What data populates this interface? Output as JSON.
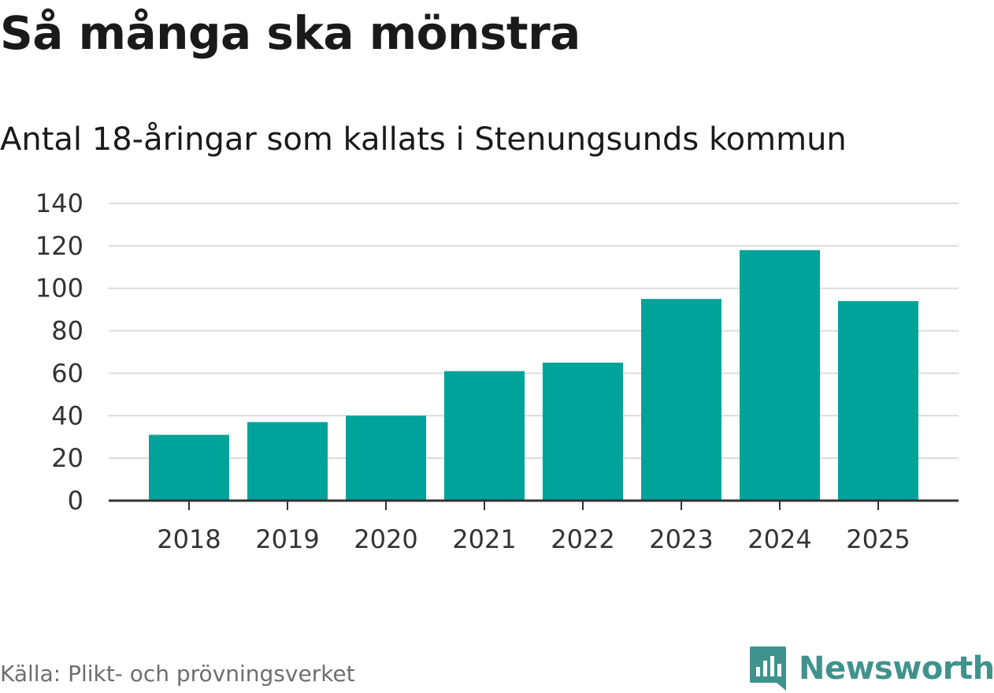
{
  "title": "Så många ska mönstra",
  "subtitle": "Antal 18-åringar som kallats i Stenungsunds kommun",
  "source": "Källa: Plikt- och prövningsverket",
  "brand": {
    "name": "Newsworthy",
    "icon": "newsworthy-logo-icon",
    "color": "#40938d"
  },
  "chart_data": {
    "type": "bar",
    "title": "Så många ska mönstra",
    "subtitle": "Antal 18-åringar som kallats i Stenungsunds kommun",
    "categories": [
      "2018",
      "2019",
      "2020",
      "2021",
      "2022",
      "2023",
      "2024",
      "2025"
    ],
    "values": [
      31,
      37,
      40,
      61,
      65,
      95,
      118,
      94
    ],
    "xlabel": "",
    "ylabel": "",
    "ylim": [
      0,
      140
    ],
    "yticks": [
      0,
      20,
      40,
      60,
      80,
      100,
      120,
      140
    ],
    "grid": true,
    "bar_color": "#00a39a"
  }
}
